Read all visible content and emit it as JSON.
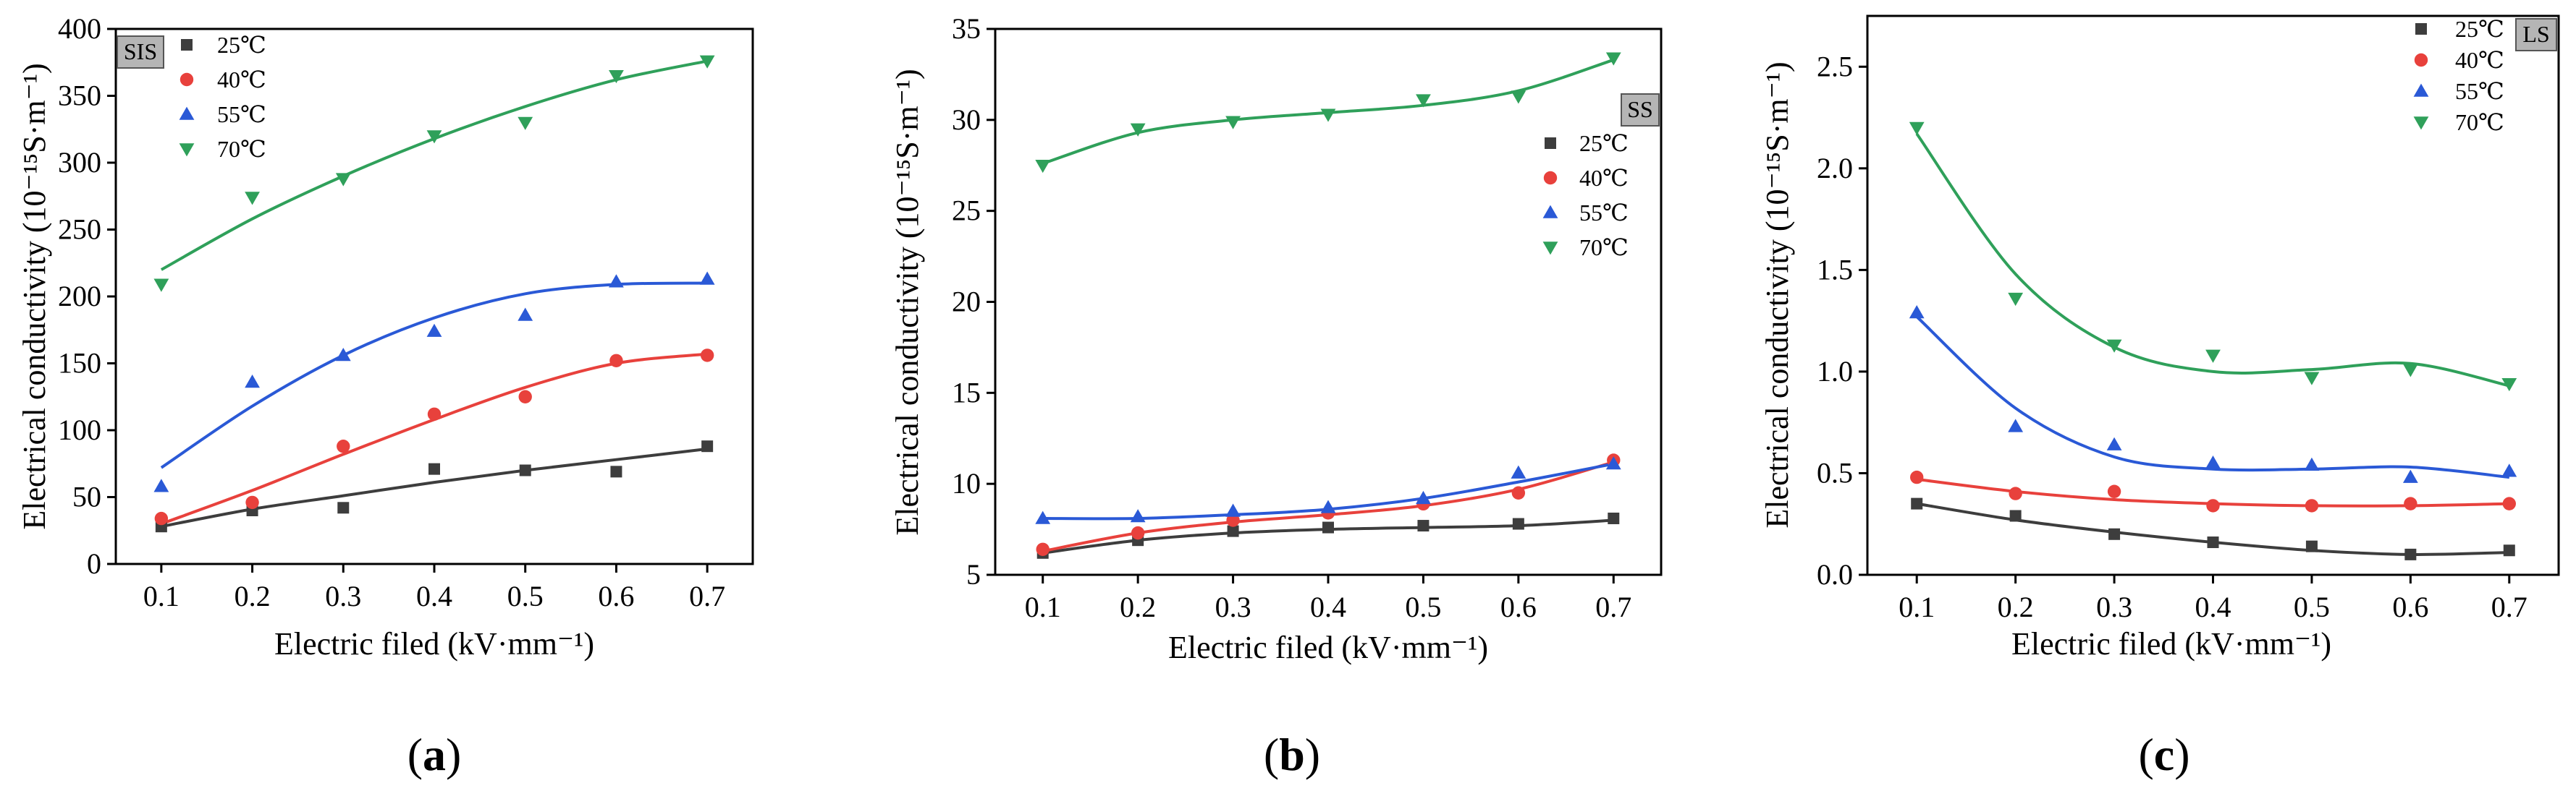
{
  "chart_data": [
    {
      "type": "scatter",
      "panel_tag": "SIS",
      "caption_open": "(",
      "caption_letter": "a",
      "caption_close": ")",
      "xlabel": "Electric filed (kV·mm⁻¹)",
      "ylabel": "Electrical conductivity (10⁻¹⁵S·m⁻¹)",
      "xlim": [
        0.05,
        0.75
      ],
      "ylim": [
        0,
        400
      ],
      "x_ticks": [
        0.1,
        0.2,
        0.3,
        0.4,
        0.5,
        0.6,
        0.7
      ],
      "x_tick_labels": [
        "0.1",
        "0.2",
        "0.3",
        "0.4",
        "0.5",
        "0.6",
        "0.7"
      ],
      "y_ticks": [
        0,
        50,
        100,
        150,
        200,
        250,
        300,
        350,
        400
      ],
      "y_tick_labels": [
        "0",
        "50",
        "100",
        "150",
        "200",
        "250",
        "300",
        "350",
        "400"
      ],
      "legend_position": "top-left",
      "x": [
        0.1,
        0.2,
        0.3,
        0.4,
        0.5,
        0.6,
        0.7
      ],
      "series": [
        {
          "name": "25℃",
          "marker": "square",
          "color": "#3d3d3d",
          "values": [
            28,
            40,
            42,
            71,
            70,
            69,
            88
          ],
          "fit": [
            28,
            41,
            51,
            61,
            70,
            78,
            86
          ]
        },
        {
          "name": "40℃",
          "marker": "circle",
          "color": "#e8413c",
          "values": [
            34,
            46,
            88,
            112,
            125,
            152,
            156
          ],
          "fit": [
            30,
            55,
            82,
            108,
            132,
            150,
            157
          ]
        },
        {
          "name": "55℃",
          "marker": "triangle-up",
          "color": "#2a59d6",
          "values": [
            58,
            136,
            156,
            174,
            186,
            211,
            213
          ],
          "fit": [
            72,
            118,
            156,
            184,
            202,
            209,
            210
          ]
        },
        {
          "name": "70℃",
          "marker": "triangle-down",
          "color": "#2fa05a",
          "values": [
            209,
            274,
            288,
            320,
            330,
            365,
            376
          ],
          "fit": [
            220,
            258,
            290,
            318,
            342,
            362,
            376
          ]
        }
      ]
    },
    {
      "type": "scatter",
      "panel_tag": "SS",
      "caption_open": "(",
      "caption_letter": "b",
      "caption_close": ")",
      "xlabel": "Electric filed (kV·mm⁻¹)",
      "ylabel": "Electrical conductivity (10⁻¹⁵S·m⁻¹)",
      "xlim": [
        0.05,
        0.75
      ],
      "ylim": [
        5,
        35
      ],
      "x_ticks": [
        0.1,
        0.2,
        0.3,
        0.4,
        0.5,
        0.6,
        0.7
      ],
      "x_tick_labels": [
        "0.1",
        "0.2",
        "0.3",
        "0.4",
        "0.5",
        "0.6",
        "0.7"
      ],
      "y_ticks": [
        5,
        10,
        15,
        20,
        25,
        30,
        35
      ],
      "y_tick_labels": [
        "5",
        "10",
        "15",
        "20",
        "25",
        "30",
        "35"
      ],
      "legend_position": "right",
      "x": [
        0.1,
        0.2,
        0.3,
        0.4,
        0.5,
        0.6,
        0.7
      ],
      "series": [
        {
          "name": "25℃",
          "marker": "square",
          "color": "#3d3d3d",
          "values": [
            6.2,
            6.9,
            7.4,
            7.6,
            7.7,
            7.8,
            8.1
          ],
          "fit": [
            6.2,
            6.9,
            7.3,
            7.5,
            7.6,
            7.7,
            8.0
          ]
        },
        {
          "name": "40℃",
          "marker": "circle",
          "color": "#e8413c",
          "values": [
            6.4,
            7.3,
            8.0,
            8.4,
            8.9,
            9.5,
            11.3
          ],
          "fit": [
            6.3,
            7.3,
            7.9,
            8.3,
            8.8,
            9.7,
            11.2
          ]
        },
        {
          "name": "55℃",
          "marker": "triangle-up",
          "color": "#2a59d6",
          "values": [
            8.1,
            8.2,
            8.5,
            8.7,
            9.2,
            10.6,
            11.1
          ],
          "fit": [
            8.1,
            8.1,
            8.3,
            8.6,
            9.2,
            10.1,
            11.1
          ]
        },
        {
          "name": "70℃",
          "marker": "triangle-down",
          "color": "#2fa05a",
          "values": [
            27.5,
            29.5,
            29.9,
            30.3,
            31.1,
            31.3,
            33.4
          ],
          "fit": [
            27.6,
            29.3,
            30.0,
            30.4,
            30.8,
            31.6,
            33.3
          ]
        }
      ]
    },
    {
      "type": "scatter",
      "panel_tag": "LS",
      "caption_open": "(",
      "caption_letter": "c",
      "caption_close": ")",
      "xlabel": "Electric filed (kV·mm⁻¹)",
      "ylabel": "Electrical conductivity (10⁻¹⁵S·m⁻¹)",
      "xlim": [
        0.05,
        0.75
      ],
      "ylim": [
        0,
        2.75
      ],
      "x_ticks": [
        0.1,
        0.2,
        0.3,
        0.4,
        0.5,
        0.6,
        0.7
      ],
      "x_tick_labels": [
        "0.1",
        "0.2",
        "0.3",
        "0.4",
        "0.5",
        "0.6",
        "0.7"
      ],
      "y_ticks": [
        0,
        0.5,
        1.0,
        1.5,
        2.0,
        2.5
      ],
      "y_tick_labels": [
        "0.0",
        "0.5",
        "1.0",
        "1.5",
        "2.0",
        "2.5"
      ],
      "legend_position": "top-right",
      "x": [
        0.1,
        0.2,
        0.3,
        0.4,
        0.5,
        0.6,
        0.7
      ],
      "series": [
        {
          "name": "25℃",
          "marker": "square",
          "color": "#3d3d3d",
          "values": [
            0.35,
            0.29,
            0.2,
            0.16,
            0.14,
            0.1,
            0.12
          ],
          "fit": [
            0.35,
            0.27,
            0.21,
            0.16,
            0.12,
            0.1,
            0.11
          ]
        },
        {
          "name": "40℃",
          "marker": "circle",
          "color": "#e8413c",
          "values": [
            0.48,
            0.4,
            0.41,
            0.34,
            0.34,
            0.35,
            0.35
          ],
          "fit": [
            0.47,
            0.41,
            0.37,
            0.35,
            0.34,
            0.34,
            0.35
          ]
        },
        {
          "name": "55℃",
          "marker": "triangle-up",
          "color": "#2a59d6",
          "values": [
            1.29,
            0.73,
            0.64,
            0.55,
            0.54,
            0.48,
            0.51
          ],
          "fit": [
            1.27,
            0.82,
            0.58,
            0.52,
            0.52,
            0.53,
            0.48
          ]
        },
        {
          "name": "70℃",
          "marker": "triangle-down",
          "color": "#2fa05a",
          "values": [
            2.2,
            1.36,
            1.13,
            1.08,
            0.97,
            1.01,
            0.94
          ],
          "fit": [
            2.17,
            1.48,
            1.12,
            1.0,
            1.01,
            1.04,
            0.93
          ]
        }
      ]
    }
  ]
}
